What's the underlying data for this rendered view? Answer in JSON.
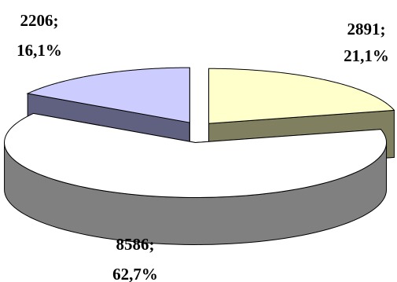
{
  "chart_data": {
    "type": "pie",
    "title": "",
    "three_d": true,
    "exploded": true,
    "legend": "none",
    "slices": [
      {
        "value": 2891,
        "percent": "21,1%",
        "value_label": "2891;",
        "color_top": "#ffffcc",
        "color_side": "#808060"
      },
      {
        "value": 8586,
        "percent": "62,7%",
        "value_label": "8586;",
        "color_top": "#ffffff",
        "color_side": "#808080"
      },
      {
        "value": 2206,
        "percent": "16,1%",
        "value_label": "2206;",
        "color_top": "#ccccff",
        "color_side": "#606080"
      }
    ]
  }
}
